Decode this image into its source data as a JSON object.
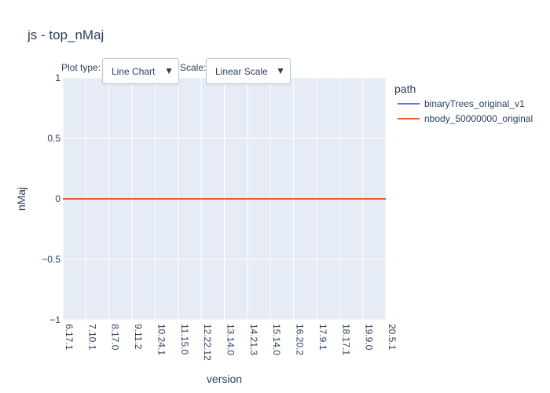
{
  "chart_data": {
    "type": "line",
    "title": "js - top_nMaj",
    "xlabel": "version",
    "ylabel": "nMaj",
    "categories": [
      "6.17.1",
      "7.10.1",
      "8.17.0",
      "9.11.2",
      "10.24.1",
      "11.15.0",
      "12.22.12",
      "13.14.0",
      "14.21.3",
      "15.14.0",
      "16.20.2",
      "17.9.1",
      "18.17.1",
      "19.9.0",
      "20.5.1"
    ],
    "ylim": [
      -1,
      1
    ],
    "yticks": [
      1,
      0.5,
      0,
      -0.5,
      -1
    ],
    "ytick_labels": [
      "1",
      "0.5",
      "0",
      "−0.5",
      "−1"
    ],
    "grid": true,
    "legend": {
      "title": "path",
      "placement": "right"
    },
    "series": [
      {
        "name": "binaryTrees_original_v1",
        "color": "#636efa",
        "values": [
          0,
          0,
          0,
          0,
          0,
          0,
          0,
          0,
          0,
          0,
          0,
          0,
          0,
          0,
          0
        ]
      },
      {
        "name": "nbody_50000000_original",
        "color": "#ef553b",
        "values": [
          0,
          0,
          0,
          0,
          0,
          0,
          0,
          0,
          0,
          0,
          0,
          0,
          0,
          0,
          0
        ]
      }
    ]
  },
  "controls": {
    "plot_type_label": "Plot type:",
    "plot_type_value": "Line Chart",
    "scale_label": "Scale:",
    "scale_value": "Linear Scale",
    "arrow_icon": "triangle-down-icon"
  },
  "colors": {
    "plot_bg": "#e5ecf6",
    "grid": "#ffffff",
    "text": "#2a3f5f"
  }
}
